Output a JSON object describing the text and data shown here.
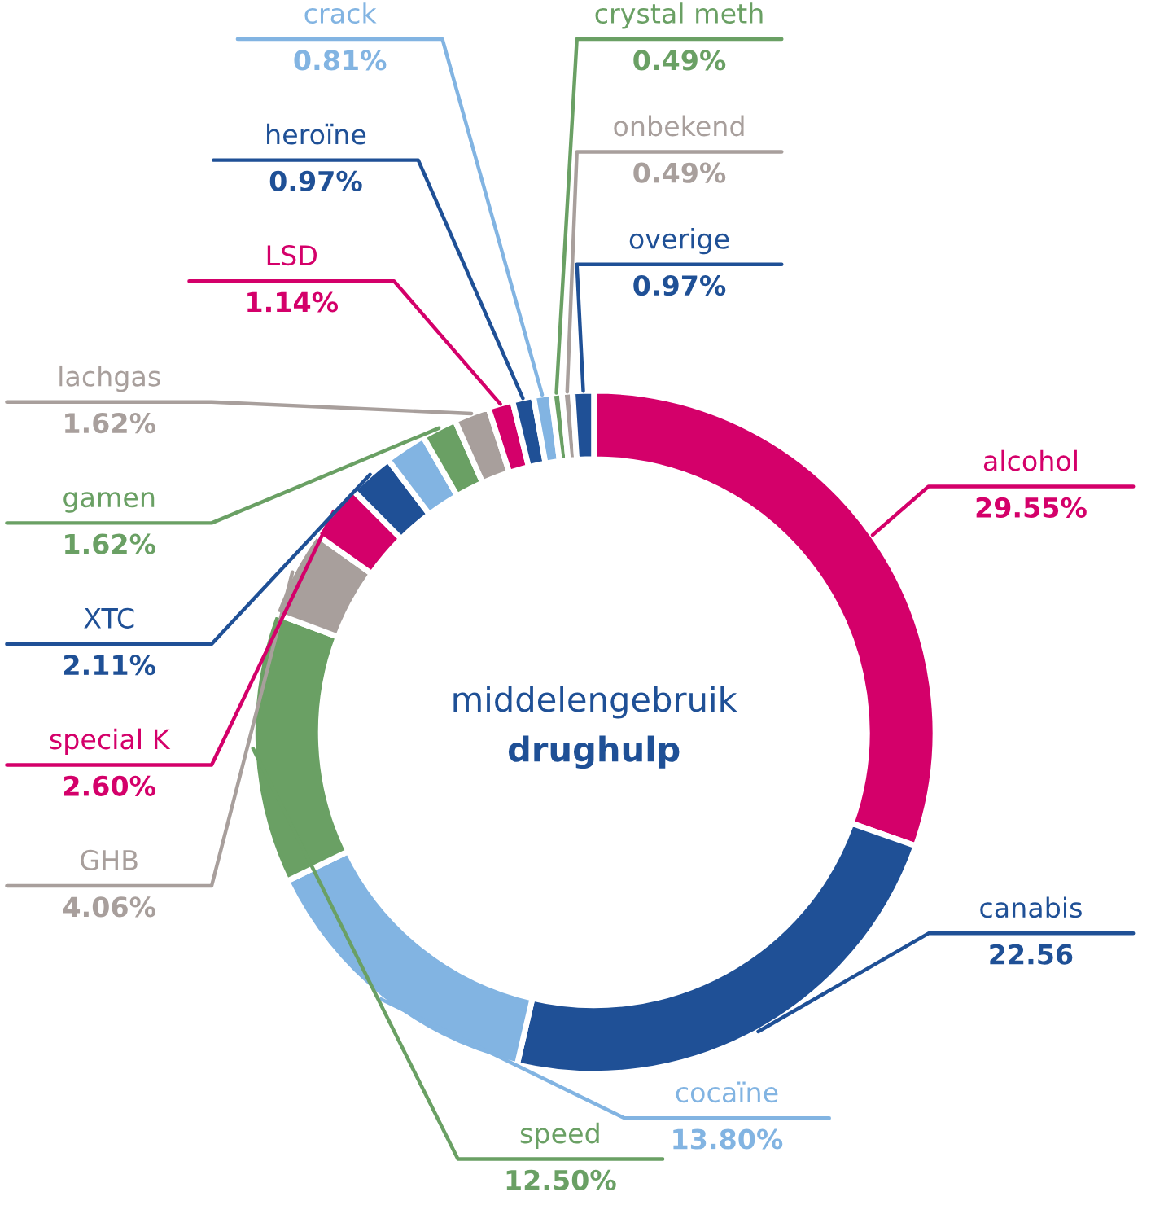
{
  "chart_data": {
    "type": "donut",
    "title": "middelengebruik",
    "subtitle": "drughulp",
    "categories": [
      "alcohol",
      "canabis",
      "cocaïne",
      "speed",
      "GHB",
      "special K",
      "XTC",
      null,
      "gamen",
      "lachgas",
      "LSD",
      "heroïne",
      "crack",
      "crystal meth",
      "onbekend",
      "overige"
    ],
    "values": [
      29.55,
      22.56,
      13.8,
      12.5,
      4.06,
      2.6,
      2.11,
      1.9,
      1.62,
      1.62,
      1.14,
      0.97,
      0.81,
      0.49,
      0.49,
      0.97
    ],
    "value_labels": [
      "29.55%",
      "22.56",
      "13.80%",
      "12.50%",
      "4.06%",
      "2.60%",
      "2.11%",
      null,
      "1.62%",
      "1.62%",
      "1.14%",
      "0.97%",
      "0.81%",
      "0.49%",
      "0.49%",
      "0.97%"
    ],
    "colors": [
      "#d4006a",
      "#1f5096",
      "#82b4e2",
      "#6aa064",
      "#a89f9c",
      "#d4006a",
      "#1f5096",
      "#82b4e2",
      "#6aa064",
      "#a89f9c",
      "#d4006a",
      "#1f5096",
      "#82b4e2",
      "#6aa064",
      "#a89f9c",
      "#1f5096"
    ]
  }
}
